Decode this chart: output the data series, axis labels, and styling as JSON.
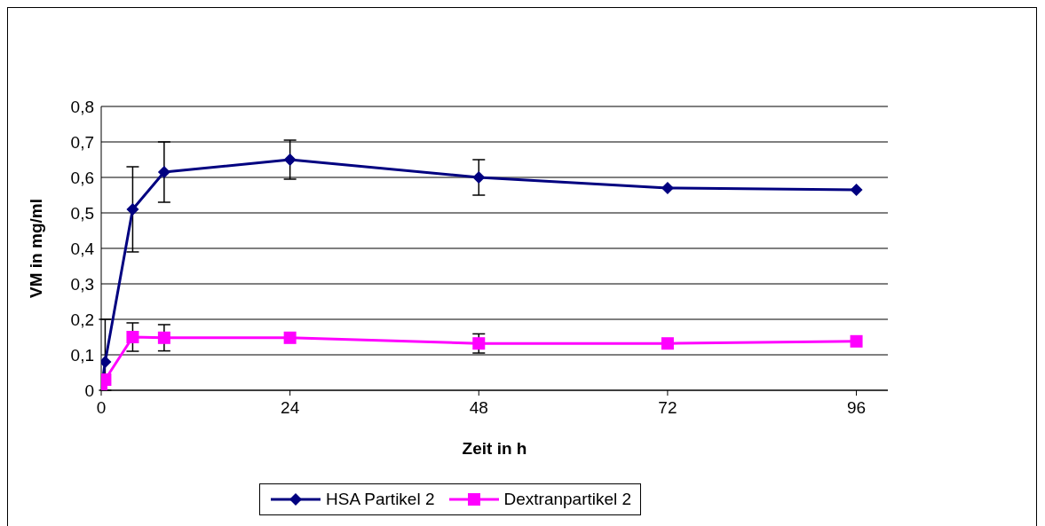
{
  "chart_data": {
    "type": "line",
    "xlabel": "Zeit in h",
    "ylabel": "VM in mg/ml",
    "xlim": [
      0,
      100
    ],
    "xticks": [
      0,
      24,
      48,
      72,
      96
    ],
    "ylim": [
      0,
      0.8
    ],
    "yticks": [
      {
        "value": 0,
        "label": "0"
      },
      {
        "value": 0.1,
        "label": "0,1"
      },
      {
        "value": 0.2,
        "label": "0,2"
      },
      {
        "value": 0.3,
        "label": "0,3"
      },
      {
        "value": 0.4,
        "label": "0,4"
      },
      {
        "value": 0.5,
        "label": "0,5"
      },
      {
        "value": 0.6,
        "label": "0,6"
      },
      {
        "value": 0.7,
        "label": "0,7"
      },
      {
        "value": 0.8,
        "label": "0,8"
      }
    ],
    "grid": "y",
    "legend": "bottom",
    "line_style": "solid",
    "series": [
      {
        "name": "HSA Partikel 2",
        "color": "#000080",
        "marker": "diamond",
        "x": [
          0,
          0.5,
          4,
          8,
          24,
          48,
          72,
          96
        ],
        "values": [
          0,
          0.08,
          0.51,
          0.615,
          0.65,
          0.6,
          0.57,
          0.565
        ],
        "errors": [
          null,
          [
            0,
            0.2
          ],
          0.12,
          0.085,
          0.055,
          0.05,
          null,
          null
        ]
      },
      {
        "name": "Dextranpartikel 2",
        "color": "#ff00ff",
        "marker": "square",
        "x": [
          0,
          0.5,
          4,
          8,
          24,
          48,
          72,
          96
        ],
        "values": [
          0.005,
          0.03,
          0.15,
          0.148,
          0.148,
          0.132,
          0.132,
          0.138
        ],
        "errors": [
          null,
          null,
          0.04,
          0.037,
          null,
          0.027,
          null,
          null
        ]
      }
    ]
  }
}
